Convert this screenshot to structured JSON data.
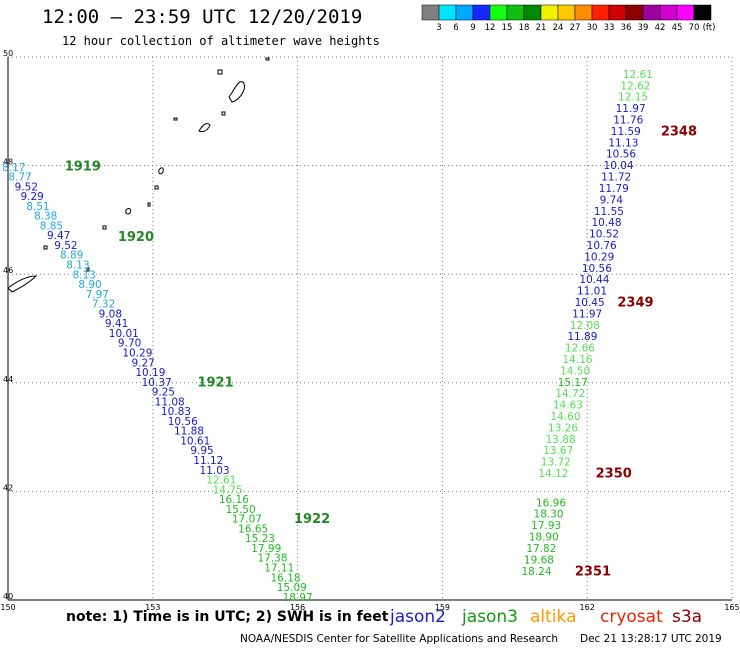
{
  "header": {
    "title": "12:00 – 23:59 UTC 12/20/2019",
    "subtitle": "12 hour collection of altimeter wave heights"
  },
  "colorbar": {
    "unit_label": "(ft)",
    "segments": [
      {
        "color": "#7f7f7f",
        "label": "3"
      },
      {
        "color": "#00e5ff",
        "label": "6"
      },
      {
        "color": "#00a8ff",
        "label": "9"
      },
      {
        "color": "#1428ff",
        "label": "12"
      },
      {
        "color": "#12ff12",
        "label": "15"
      },
      {
        "color": "#10c010",
        "label": "18"
      },
      {
        "color": "#008800",
        "label": "21"
      },
      {
        "color": "#f0f000",
        "label": "24"
      },
      {
        "color": "#ffc800",
        "label": "27"
      },
      {
        "color": "#ff8c00",
        "label": "30"
      },
      {
        "color": "#ff2000",
        "label": "33"
      },
      {
        "color": "#d00000",
        "label": "36"
      },
      {
        "color": "#8a0000",
        "label": "39"
      },
      {
        "color": "#a000a0",
        "label": "42"
      },
      {
        "color": "#d000d0",
        "label": "45"
      },
      {
        "color": "#ff00ff",
        "label": "70"
      },
      {
        "color": "#000000",
        "label": ""
      }
    ]
  },
  "map": {
    "lat_range": [
      40,
      50
    ],
    "lon_range": [
      150,
      165
    ],
    "lat_ticks": [
      "50",
      "48",
      "46",
      "44",
      "42",
      "40"
    ],
    "lon_ticks": [
      "150",
      "153",
      "156",
      "159",
      "162",
      "165"
    ],
    "grid_color": "#7a7a7a"
  },
  "tracks": [
    {
      "id": "west",
      "points": [
        {
          "lon": 150.12,
          "lat": 47.96,
          "v": "8.17",
          "c": "#22aadd"
        },
        {
          "lon": 150.25,
          "lat": 47.78,
          "v": "8.77",
          "c": "#22aadd"
        },
        {
          "lon": 150.38,
          "lat": 47.6,
          "v": "9.52",
          "c": "#1a1acc"
        },
        {
          "lon": 150.5,
          "lat": 47.42,
          "v": "9.29",
          "c": "#1a1acc"
        },
        {
          "lon": 150.62,
          "lat": 47.24,
          "v": "8.51",
          "c": "#22aadd"
        },
        {
          "lon": 150.78,
          "lat": 47.06,
          "v": "8.38",
          "c": "#22aadd"
        },
        {
          "lon": 150.9,
          "lat": 46.88,
          "v": "8.85",
          "c": "#22aadd"
        },
        {
          "lon": 151.05,
          "lat": 46.7,
          "v": "9.47",
          "c": "#1a1acc"
        },
        {
          "lon": 151.2,
          "lat": 46.52,
          "v": "9.52",
          "c": "#1a1acc"
        },
        {
          "lon": 151.32,
          "lat": 46.34,
          "v": "8.89",
          "c": "#22aadd"
        },
        {
          "lon": 151.45,
          "lat": 46.16,
          "v": "8.13",
          "c": "#22aadd"
        },
        {
          "lon": 151.58,
          "lat": 45.98,
          "v": "8.13",
          "c": "#22aadd"
        },
        {
          "lon": 151.7,
          "lat": 45.8,
          "v": "8.90",
          "c": "#22aadd"
        },
        {
          "lon": 151.85,
          "lat": 45.62,
          "v": "7.97",
          "c": "#22aadd"
        },
        {
          "lon": 151.98,
          "lat": 45.44,
          "v": "7.32",
          "c": "#22aadd"
        },
        {
          "lon": 152.12,
          "lat": 45.26,
          "v": "9.08",
          "c": "#1a1acc"
        },
        {
          "lon": 152.25,
          "lat": 45.08,
          "v": "9.41",
          "c": "#1a1acc"
        },
        {
          "lon": 152.4,
          "lat": 44.9,
          "v": "10.01",
          "c": "#1a1acc"
        },
        {
          "lon": 152.52,
          "lat": 44.72,
          "v": "9.70",
          "c": "#1a1acc"
        },
        {
          "lon": 152.68,
          "lat": 44.54,
          "v": "10.29",
          "c": "#1a1acc"
        },
        {
          "lon": 152.8,
          "lat": 44.36,
          "v": "9.27",
          "c": "#1a1acc"
        },
        {
          "lon": 152.95,
          "lat": 44.18,
          "v": "10.19",
          "c": "#1a1acc"
        },
        {
          "lon": 153.08,
          "lat": 44.0,
          "v": "10.37",
          "c": "#1a1acc"
        },
        {
          "lon": 153.22,
          "lat": 43.82,
          "v": "9.25",
          "c": "#1a1acc"
        },
        {
          "lon": 153.35,
          "lat": 43.64,
          "v": "11.08",
          "c": "#1a1acc"
        },
        {
          "lon": 153.48,
          "lat": 43.46,
          "v": "10.83",
          "c": "#1a1acc"
        },
        {
          "lon": 153.62,
          "lat": 43.28,
          "v": "10.56",
          "c": "#1a1acc"
        },
        {
          "lon": 153.75,
          "lat": 43.1,
          "v": "11.88",
          "c": "#1a1acc"
        },
        {
          "lon": 153.88,
          "lat": 42.92,
          "v": "10.61",
          "c": "#1a1acc"
        },
        {
          "lon": 154.02,
          "lat": 42.74,
          "v": "9.95",
          "c": "#1a1acc"
        },
        {
          "lon": 154.15,
          "lat": 42.56,
          "v": "11.12",
          "c": "#1a1acc"
        },
        {
          "lon": 154.28,
          "lat": 42.38,
          "v": "11.03",
          "c": "#1a1acc"
        },
        {
          "lon": 154.42,
          "lat": 42.2,
          "v": "12.61",
          "c": "#55e055"
        },
        {
          "lon": 154.55,
          "lat": 42.02,
          "v": "14.75",
          "c": "#55e055"
        },
        {
          "lon": 154.68,
          "lat": 41.84,
          "v": "16.16",
          "c": "#22bb22"
        },
        {
          "lon": 154.82,
          "lat": 41.66,
          "v": "15.50",
          "c": "#22bb22"
        },
        {
          "lon": 154.95,
          "lat": 41.48,
          "v": "17.07",
          "c": "#22bb22"
        },
        {
          "lon": 155.08,
          "lat": 41.3,
          "v": "16.65",
          "c": "#22bb22"
        },
        {
          "lon": 155.22,
          "lat": 41.12,
          "v": "15.23",
          "c": "#22bb22"
        },
        {
          "lon": 155.35,
          "lat": 40.94,
          "v": "17.99",
          "c": "#22bb22"
        },
        {
          "lon": 155.48,
          "lat": 40.76,
          "v": "17.38",
          "c": "#22bb22"
        },
        {
          "lon": 155.62,
          "lat": 40.58,
          "v": "17.11",
          "c": "#22bb22"
        },
        {
          "lon": 155.75,
          "lat": 40.4,
          "v": "16.18",
          "c": "#22bb22"
        },
        {
          "lon": 155.88,
          "lat": 40.22,
          "v": "15.09",
          "c": "#22bb22"
        },
        {
          "lon": 156.0,
          "lat": 40.04,
          "v": "18.97",
          "c": "#22bb22"
        }
      ],
      "time_labels": [
        {
          "lon": 151.55,
          "lat": 47.97,
          "t": "1919",
          "c": "#228822"
        },
        {
          "lon": 152.65,
          "lat": 46.68,
          "t": "1920",
          "c": "#228822"
        },
        {
          "lon": 154.3,
          "lat": 44.0,
          "t": "1921",
          "c": "#228822"
        },
        {
          "lon": 156.3,
          "lat": 41.48,
          "t": "1922",
          "c": "#228822"
        }
      ]
    },
    {
      "id": "east",
      "points": [
        {
          "lon": 163.05,
          "lat": 49.67,
          "v": "12.61",
          "c": "#55e055"
        },
        {
          "lon": 163.0,
          "lat": 49.46,
          "v": "12.62",
          "c": "#55e055"
        },
        {
          "lon": 162.95,
          "lat": 49.25,
          "v": "12.15",
          "c": "#55e055"
        },
        {
          "lon": 162.9,
          "lat": 49.04,
          "v": "11.97",
          "c": "#1a1acc"
        },
        {
          "lon": 162.85,
          "lat": 48.83,
          "v": "11.76",
          "c": "#1a1acc"
        },
        {
          "lon": 162.8,
          "lat": 48.62,
          "v": "11.59",
          "c": "#1a1acc"
        },
        {
          "lon": 162.75,
          "lat": 48.41,
          "v": "11.13",
          "c": "#1a1acc"
        },
        {
          "lon": 162.7,
          "lat": 48.2,
          "v": "10.56",
          "c": "#1a1acc"
        },
        {
          "lon": 162.65,
          "lat": 47.99,
          "v": "10.04",
          "c": "#1a1acc"
        },
        {
          "lon": 162.6,
          "lat": 47.78,
          "v": "11.72",
          "c": "#1a1acc"
        },
        {
          "lon": 162.55,
          "lat": 47.57,
          "v": "11.79",
          "c": "#1a1acc"
        },
        {
          "lon": 162.5,
          "lat": 47.36,
          "v": "9.74",
          "c": "#1a1acc"
        },
        {
          "lon": 162.45,
          "lat": 47.15,
          "v": "11.55",
          "c": "#1a1acc"
        },
        {
          "lon": 162.4,
          "lat": 46.94,
          "v": "10.48",
          "c": "#1a1acc"
        },
        {
          "lon": 162.35,
          "lat": 46.73,
          "v": "10.52",
          "c": "#1a1acc"
        },
        {
          "lon": 162.3,
          "lat": 46.52,
          "v": "10.76",
          "c": "#1a1acc"
        },
        {
          "lon": 162.25,
          "lat": 46.31,
          "v": "10.29",
          "c": "#1a1acc"
        },
        {
          "lon": 162.2,
          "lat": 46.1,
          "v": "10.56",
          "c": "#1a1acc"
        },
        {
          "lon": 162.15,
          "lat": 45.89,
          "v": "10.44",
          "c": "#1a1acc"
        },
        {
          "lon": 162.1,
          "lat": 45.68,
          "v": "11.01",
          "c": "#1a1acc"
        },
        {
          "lon": 162.05,
          "lat": 45.47,
          "v": "10.45",
          "c": "#1a1acc"
        },
        {
          "lon": 162.0,
          "lat": 45.26,
          "v": "11.97",
          "c": "#1a1acc"
        },
        {
          "lon": 161.95,
          "lat": 45.05,
          "v": "12.08",
          "c": "#55e055"
        },
        {
          "lon": 161.9,
          "lat": 44.84,
          "v": "11.89",
          "c": "#1a1acc"
        },
        {
          "lon": 161.85,
          "lat": 44.63,
          "v": "12.66",
          "c": "#55e055"
        },
        {
          "lon": 161.8,
          "lat": 44.42,
          "v": "14.16",
          "c": "#55e055"
        },
        {
          "lon": 161.75,
          "lat": 44.21,
          "v": "14.50",
          "c": "#55e055"
        },
        {
          "lon": 161.7,
          "lat": 44.0,
          "v": "15.17",
          "c": "#22bb22"
        },
        {
          "lon": 161.65,
          "lat": 43.79,
          "v": "14.72",
          "c": "#55e055"
        },
        {
          "lon": 161.6,
          "lat": 43.58,
          "v": "14.63",
          "c": "#55e055"
        },
        {
          "lon": 161.55,
          "lat": 43.37,
          "v": "14.60",
          "c": "#55e055"
        },
        {
          "lon": 161.5,
          "lat": 43.16,
          "v": "13.26",
          "c": "#55e055"
        },
        {
          "lon": 161.45,
          "lat": 42.95,
          "v": "13.88",
          "c": "#55e055"
        },
        {
          "lon": 161.4,
          "lat": 42.74,
          "v": "13.67",
          "c": "#55e055"
        },
        {
          "lon": 161.35,
          "lat": 42.53,
          "v": "13.72",
          "c": "#55e055"
        },
        {
          "lon": 161.3,
          "lat": 42.32,
          "v": "14.12",
          "c": "#55e055"
        },
        {
          "lon": 161.25,
          "lat": 41.78,
          "v": "16.96",
          "c": "#22bb22"
        },
        {
          "lon": 161.2,
          "lat": 41.57,
          "v": "18.30",
          "c": "#22bb22"
        },
        {
          "lon": 161.15,
          "lat": 41.36,
          "v": "17.93",
          "c": "#22bb22"
        },
        {
          "lon": 161.1,
          "lat": 41.15,
          "v": "18.90",
          "c": "#22bb22"
        },
        {
          "lon": 161.05,
          "lat": 40.94,
          "v": "17.82",
          "c": "#22bb22"
        },
        {
          "lon": 161.0,
          "lat": 40.73,
          "v": "19.68",
          "c": "#22bb22"
        },
        {
          "lon": 160.95,
          "lat": 40.52,
          "v": "18.24",
          "c": "#22bb22"
        }
      ],
      "time_labels": [
        {
          "lon": 163.9,
          "lat": 48.62,
          "t": "2348",
          "c": "#8b0000"
        },
        {
          "lon": 163.0,
          "lat": 45.47,
          "t": "2349",
          "c": "#8b0000"
        },
        {
          "lon": 162.55,
          "lat": 42.32,
          "t": "2350",
          "c": "#8b0000"
        },
        {
          "lon": 162.12,
          "lat": 40.52,
          "t": "2351",
          "c": "#8b0000"
        }
      ]
    }
  ],
  "legend": {
    "note": "note:  1) Time is in UTC;  2) SWH is in feet",
    "satellites": [
      {
        "name": "jason2",
        "color": "#1a1acc"
      },
      {
        "name": "jason3",
        "color": "#119911"
      },
      {
        "name": "altika",
        "color": "#ff9900"
      },
      {
        "name": "cryosat",
        "color": "#ee2200"
      },
      {
        "name": "s3a",
        "color": "#8b0000"
      }
    ]
  },
  "footer": {
    "credit": "NOAA/NESDIS Center for Satellite Applications and Research",
    "timestamp": "Dec 21 13:28:17 UTC 2019"
  }
}
